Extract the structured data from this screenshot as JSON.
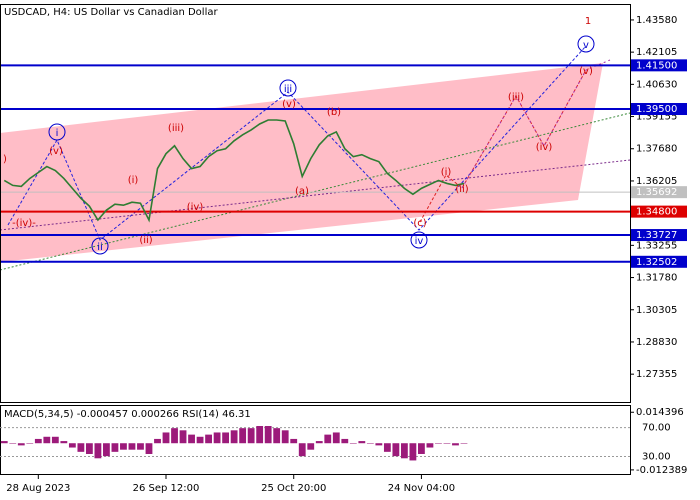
{
  "chart_data": {
    "type": "line",
    "title": "USDCAD, H4:  US Dollar vs Canadian Dollar",
    "categories": [
      null,
      null,
      null,
      null,
      "28 Aug 2023",
      null,
      null,
      null,
      null,
      null,
      null,
      null,
      null,
      null,
      null,
      null,
      null,
      null,
      null,
      "26 Sep 12:00",
      null,
      null,
      null,
      null,
      null,
      null,
      null,
      null,
      null,
      null,
      null,
      null,
      null,
      null,
      "25 Oct 20:00",
      null,
      null,
      null,
      null,
      null,
      null,
      null,
      null,
      null,
      null,
      null,
      null,
      null,
      null,
      "24 Nov 04:00",
      null,
      null,
      null,
      null,
      null,
      null,
      null,
      null,
      null,
      null,
      null,
      null,
      null,
      null,
      null,
      null,
      null,
      null,
      null,
      null,
      null,
      null,
      null,
      null
    ],
    "values": [
      1.36228,
      1.36002,
      1.35956,
      1.36319,
      1.36591,
      1.36864,
      1.36682,
      1.36319,
      1.35865,
      1.35412,
      1.35049,
      1.34413,
      1.34867,
      1.35139,
      1.35094,
      1.3523,
      1.35185,
      1.34413,
      1.36773,
      1.37454,
      1.37817,
      1.37227,
      1.36773,
      1.36864,
      1.37318,
      1.3759,
      1.37681,
      1.38044,
      1.38316,
      1.38543,
      1.38815,
      1.38997,
      1.38997,
      1.38951,
      1.37907,
      1.3641,
      1.37227,
      1.37862,
      1.3827,
      1.38452,
      1.37681,
      1.37318,
      1.37408,
      1.37227,
      1.37091,
      1.36546,
      1.36228,
      1.35865,
      1.35593,
      1.35865,
      1.36047,
      1.36228,
      1.36092,
      1.36002,
      1.36092,
      null,
      null,
      null,
      null,
      null,
      null,
      null,
      null,
      null,
      null,
      null,
      null,
      null,
      null,
      null,
      null,
      null,
      null,
      null
    ],
    "color": "#2e7d32",
    "ylim": [
      1.2608,
      1.4431
    ],
    "yticks": [
      {
        "value": 1.4358,
        "label": "1.43580"
      },
      1.42105,
      {
        "value": 1.4063,
        "label": "1.40630"
      },
      1.39155,
      {
        "value": 1.3768,
        "label": "1.37680"
      },
      1.36205,
      1.33255,
      {
        "value": 1.3178,
        "label": "1.31780"
      },
      1.30305,
      {
        "value": 1.2883,
        "label": "1.28830"
      },
      1.27355
    ],
    "levels": [
      {
        "value": 1.415,
        "label": "1.41500",
        "color": "#0000cc"
      },
      {
        "value": 1.395,
        "label": "1.39500",
        "color": "#0000cc"
      },
      {
        "value": 1.348,
        "label": "1.34800",
        "color": "#dd0000"
      },
      {
        "value": 1.33727,
        "label": "1.33727",
        "color": "#0000cc"
      },
      {
        "value": 1.32502,
        "label": "1.32502",
        "color": "#0000cc"
      }
    ],
    "last_price": {
      "value": 1.35692,
      "label": "1.35692",
      "color": "#c0c0c0"
    },
    "annotations": [
      {
        "text": "1",
        "color": "#cc0000"
      },
      {
        "text": "v",
        "color": "#0000cc",
        "circled": true
      },
      {
        "text": "(v)",
        "color": "#cc0000"
      },
      {
        "text": "iii",
        "color": "#0000cc",
        "circled": true
      },
      {
        "text": "(v)",
        "color": "#cc0000"
      },
      {
        "text": "(b)",
        "color": "#cc0000"
      },
      {
        "text": "(iii)",
        "color": "#cc0000"
      },
      {
        "text": "i",
        "color": "#0000cc",
        "circled": true
      },
      {
        "text": "(v)",
        "color": "#cc0000"
      },
      {
        "text": "(i)",
        "color": "#cc0000"
      },
      {
        "text": "(iii)",
        "color": "#cc0000"
      },
      {
        "text": "(iv)",
        "color": "#cc0000"
      },
      {
        "text": "(a)",
        "color": "#cc0000"
      },
      {
        "text": "(i)",
        "color": "#cc0000"
      },
      {
        "text": "(ii)",
        "color": "#cc0000"
      },
      {
        "text": "(c)",
        "color": "#cc0000"
      },
      {
        "text": "iv",
        "color": "#0000cc",
        "circled": true
      },
      {
        "text": "(iv)",
        "color": "#cc0000"
      },
      {
        "text": "(ii)",
        "color": "#cc0000"
      },
      {
        "text": "ii",
        "color": "#0000cc",
        "circled": true
      },
      {
        "text": "-(iv)-",
        "color": "#cc0000"
      },
      {
        "text": ")",
        "color": "#cc0000"
      }
    ],
    "indicator": {
      "title": "MACD(5,34,5) -0.000457 0.000266 RSI(14) 46.31",
      "values": [
        0.001,
        0,
        -0.001,
        0,
        0.002,
        0.003,
        0.003,
        0.001,
        -0.002,
        -0.004,
        -0.005,
        -0.007,
        -0.006,
        -0.004,
        -0.003,
        -0.003,
        -0.003,
        -0.005,
        0.002,
        0.005,
        0.007,
        0.006,
        0.004,
        0.003,
        0.004,
        0.005,
        0.005,
        0.006,
        0.007,
        0.007,
        0.008,
        0.008,
        0.007,
        0.006,
        0.002,
        -0.006,
        -0.003,
        0.001,
        0.004,
        0.005,
        0.002,
        0,
        0.001,
        0,
        -0.001,
        -0.004,
        -0.006,
        -0.007,
        -0.008,
        -0.005,
        -0.002,
        0,
        0,
        -0.001,
        0,
        null,
        null,
        null,
        null,
        null,
        null,
        null,
        null,
        null,
        null,
        null,
        null,
        null,
        null,
        null,
        null,
        null,
        null,
        null
      ],
      "color": "#9c1a7a",
      "ylim": [
        -0.0143,
        0.0173
      ],
      "yticks": [
        0.014396,
        -0.012389
      ],
      "y2lim": [
        5.7,
        100
      ],
      "y2ticks": [
        {
          "value": 70,
          "label": "70.00"
        },
        {
          "value": 30,
          "label": "30.00"
        }
      ]
    }
  }
}
